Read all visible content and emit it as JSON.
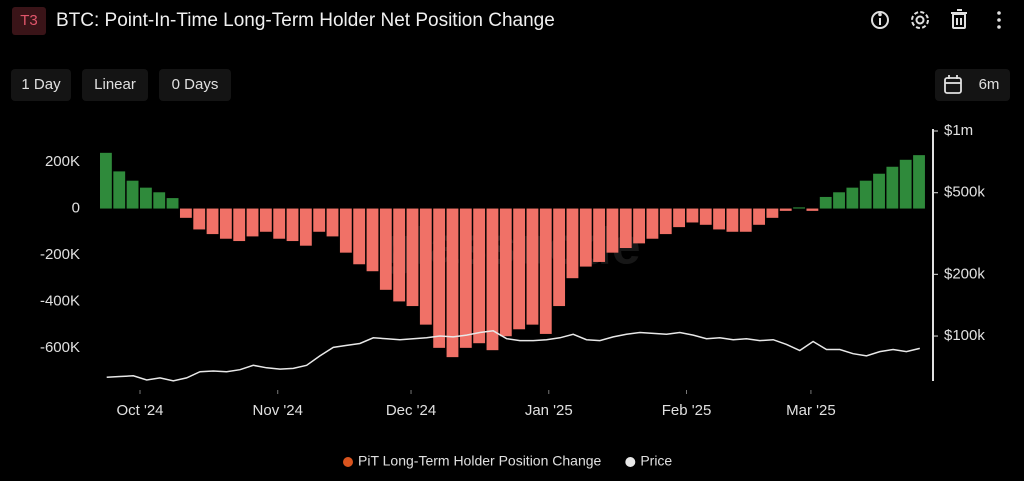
{
  "header": {
    "badge": "T3",
    "title": "BTC: Point-In-Time Long-Term Holder Net Position Change"
  },
  "toolbar": {
    "resolution": "1 Day",
    "scale": "Linear",
    "smoothing": "0 Days",
    "range": "6m"
  },
  "chart_data": {
    "type": "bar",
    "watermark": "glassnode",
    "x": [
      0,
      3,
      6,
      9,
      12,
      15,
      18,
      21,
      24,
      27,
      30,
      33,
      36,
      39,
      42,
      45,
      48,
      51,
      54,
      57,
      60,
      63,
      66,
      69,
      72,
      75,
      78,
      81,
      84,
      87,
      90,
      93,
      96,
      99,
      102,
      105,
      108,
      111,
      114,
      117,
      120,
      123,
      126,
      129,
      132,
      135,
      138,
      141,
      144,
      147,
      150,
      153,
      156,
      159,
      162,
      165,
      168,
      171,
      174,
      177,
      180,
      183
    ],
    "xlim": [
      0,
      185
    ],
    "xticks": [
      {
        "value": 9,
        "label": "Oct '24"
      },
      {
        "value": 40,
        "label": "Nov '24"
      },
      {
        "value": 70,
        "label": "Dec '24"
      },
      {
        "value": 101,
        "label": "Jan '25"
      },
      {
        "value": 132,
        "label": "Feb '25"
      },
      {
        "value": 160,
        "label": "Mar '25"
      }
    ],
    "ylim": [
      -760000,
      334000
    ],
    "yticks": [
      {
        "value": 200000,
        "label": "200K"
      },
      0,
      {
        "value": -200000,
        "label": "-200K"
      },
      {
        "value": -400000,
        "label": "-400K"
      },
      {
        "value": -600000,
        "label": "-600K"
      }
    ],
    "y2lim": [
      57700,
      1000000
    ],
    "y2_log": true,
    "y2ticks": [
      {
        "value": 1000000,
        "label": "$1m"
      },
      {
        "value": 500000,
        "label": "$500k"
      },
      {
        "value": 200000,
        "label": "$200k"
      },
      {
        "value": 100000,
        "label": "$100k"
      }
    ],
    "up_color": "#2f8a3b",
    "down_color": "#f07167",
    "series": [
      {
        "name": "PiT Long-Term Holder Position Change",
        "color": "#d9541e",
        "values": [
          240000,
          160000,
          120000,
          90000,
          70000,
          45000,
          -40000,
          -90000,
          -110000,
          -130000,
          -140000,
          -120000,
          -100000,
          -130000,
          -140000,
          -160000,
          -100000,
          -120000,
          -190000,
          -240000,
          -270000,
          -350000,
          -400000,
          -420000,
          -500000,
          -600000,
          -640000,
          -600000,
          -580000,
          -610000,
          -550000,
          -520000,
          -500000,
          -540000,
          -420000,
          -300000,
          -250000,
          -230000,
          -190000,
          -170000,
          -150000,
          -130000,
          -110000,
          -80000,
          -60000,
          -70000,
          -90000,
          -100000,
          -100000,
          -70000,
          -40000,
          -10000,
          5000,
          -10000,
          50000,
          70000,
          90000,
          120000,
          150000,
          180000,
          210000,
          230000
        ]
      },
      {
        "name": "Price",
        "color": "#e8e8e8",
        "axis": "y2",
        "values": [
          63000,
          63500,
          64000,
          61000,
          62500,
          60500,
          62500,
          67000,
          67500,
          67000,
          68500,
          72000,
          70000,
          69000,
          69500,
          72000,
          80000,
          88000,
          90000,
          92000,
          98000,
          97000,
          96000,
          97000,
          98000,
          100000,
          99000,
          101000,
          104000,
          106000,
          97000,
          95000,
          95000,
          96000,
          98000,
          102000,
          96000,
          95000,
          99000,
          102000,
          104000,
          103000,
          102000,
          104000,
          101000,
          97000,
          98000,
          96000,
          97000,
          95000,
          96000,
          91000,
          85000,
          94000,
          86000,
          86000,
          82000,
          80000,
          84000,
          86000,
          84000,
          87000
        ]
      }
    ]
  }
}
